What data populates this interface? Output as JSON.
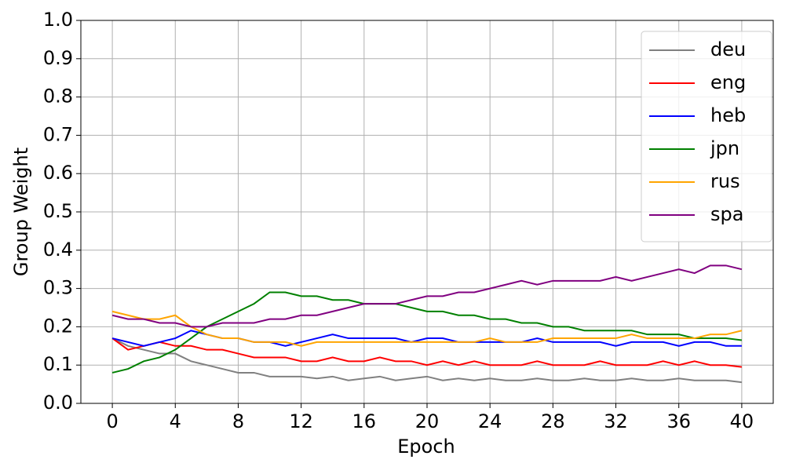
{
  "chart_data": {
    "type": "line",
    "xlabel": "Epoch",
    "ylabel": "Group Weight",
    "xlim": [
      -2,
      42
    ],
    "ylim": [
      0,
      1
    ],
    "xticks": [
      0,
      4,
      8,
      12,
      16,
      20,
      24,
      28,
      32,
      36,
      40
    ],
    "yticks": [
      {
        "value": 0,
        "label": "0.0"
      },
      0.1,
      0.2,
      0.3,
      0.4,
      0.5,
      0.6,
      0.7,
      0.8,
      0.9,
      {
        "value": 1,
        "label": "1.0"
      }
    ],
    "grid": true,
    "legend": "upper right",
    "x": [
      0,
      1,
      2,
      3,
      4,
      5,
      6,
      7,
      8,
      9,
      10,
      11,
      12,
      13,
      14,
      15,
      16,
      17,
      18,
      19,
      20,
      21,
      22,
      23,
      24,
      25,
      26,
      27,
      28,
      29,
      30,
      31,
      32,
      33,
      34,
      35,
      36,
      37,
      38,
      39,
      40
    ],
    "series": [
      {
        "name": "deu",
        "color": "#808080",
        "values": [
          0.17,
          0.15,
          0.14,
          0.13,
          0.13,
          0.11,
          0.1,
          0.09,
          0.08,
          0.08,
          0.07,
          0.07,
          0.07,
          0.065,
          0.07,
          0.06,
          0.065,
          0.07,
          0.06,
          0.065,
          0.07,
          0.06,
          0.065,
          0.06,
          0.065,
          0.06,
          0.06,
          0.065,
          0.06,
          0.06,
          0.065,
          0.06,
          0.06,
          0.065,
          0.06,
          0.06,
          0.065,
          0.06,
          0.06,
          0.06,
          0.055
        ]
      },
      {
        "name": "eng",
        "color": "#ff0000",
        "values": [
          0.17,
          0.14,
          0.15,
          0.16,
          0.15,
          0.15,
          0.14,
          0.14,
          0.13,
          0.12,
          0.12,
          0.12,
          0.11,
          0.11,
          0.12,
          0.11,
          0.11,
          0.12,
          0.11,
          0.11,
          0.1,
          0.11,
          0.1,
          0.11,
          0.1,
          0.1,
          0.1,
          0.11,
          0.1,
          0.1,
          0.1,
          0.11,
          0.1,
          0.1,
          0.1,
          0.11,
          0.1,
          0.11,
          0.1,
          0.1,
          0.095
        ]
      },
      {
        "name": "heb",
        "color": "#0000ff",
        "values": [
          0.17,
          0.16,
          0.15,
          0.16,
          0.17,
          0.19,
          0.18,
          0.17,
          0.17,
          0.16,
          0.16,
          0.15,
          0.16,
          0.17,
          0.18,
          0.17,
          0.17,
          0.17,
          0.17,
          0.16,
          0.17,
          0.17,
          0.16,
          0.16,
          0.16,
          0.16,
          0.16,
          0.17,
          0.16,
          0.16,
          0.16,
          0.16,
          0.15,
          0.16,
          0.16,
          0.16,
          0.15,
          0.16,
          0.16,
          0.15,
          0.15
        ]
      },
      {
        "name": "jpn",
        "color": "#008000",
        "values": [
          0.08,
          0.09,
          0.11,
          0.12,
          0.14,
          0.17,
          0.2,
          0.22,
          0.24,
          0.26,
          0.29,
          0.29,
          0.28,
          0.28,
          0.27,
          0.27,
          0.26,
          0.26,
          0.26,
          0.25,
          0.24,
          0.24,
          0.23,
          0.23,
          0.22,
          0.22,
          0.21,
          0.21,
          0.2,
          0.2,
          0.19,
          0.19,
          0.19,
          0.19,
          0.18,
          0.18,
          0.18,
          0.17,
          0.17,
          0.17,
          0.165
        ]
      },
      {
        "name": "rus",
        "color": "#ffa500",
        "values": [
          0.24,
          0.23,
          0.22,
          0.22,
          0.23,
          0.2,
          0.18,
          0.17,
          0.17,
          0.16,
          0.16,
          0.16,
          0.15,
          0.16,
          0.16,
          0.16,
          0.16,
          0.16,
          0.16,
          0.16,
          0.16,
          0.16,
          0.16,
          0.16,
          0.17,
          0.16,
          0.16,
          0.16,
          0.17,
          0.17,
          0.17,
          0.17,
          0.17,
          0.18,
          0.17,
          0.17,
          0.17,
          0.17,
          0.18,
          0.18,
          0.19
        ]
      },
      {
        "name": "spa",
        "color": "#800080",
        "values": [
          0.23,
          0.22,
          0.22,
          0.21,
          0.21,
          0.2,
          0.2,
          0.21,
          0.21,
          0.21,
          0.22,
          0.22,
          0.23,
          0.23,
          0.24,
          0.25,
          0.26,
          0.26,
          0.26,
          0.27,
          0.28,
          0.28,
          0.29,
          0.29,
          0.3,
          0.31,
          0.32,
          0.31,
          0.32,
          0.32,
          0.32,
          0.32,
          0.33,
          0.32,
          0.33,
          0.34,
          0.35,
          0.34,
          0.36,
          0.36,
          0.35
        ]
      }
    ]
  }
}
